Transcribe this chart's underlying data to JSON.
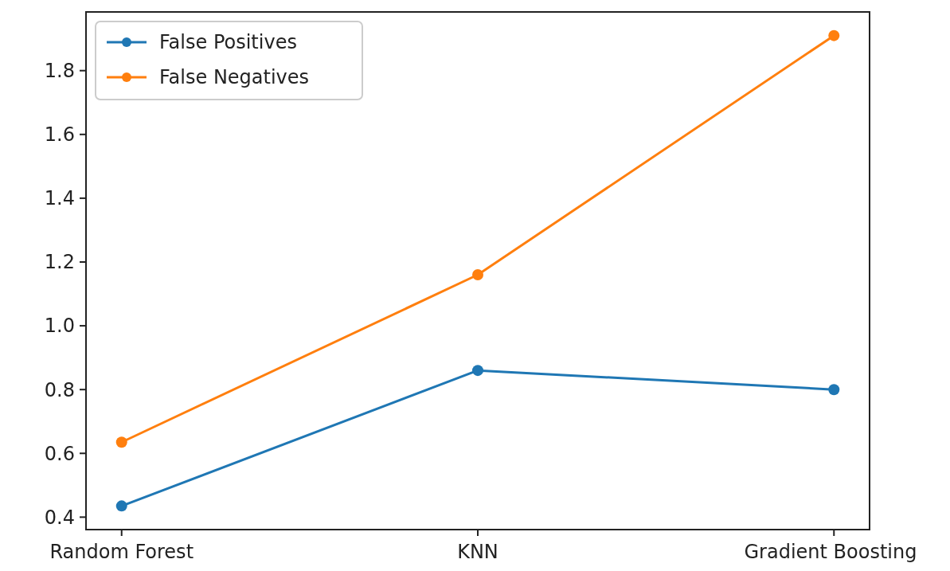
{
  "chart_data": {
    "type": "line",
    "categories": [
      "Random Forest",
      "KNN",
      "Gradient Boosting"
    ],
    "series": [
      {
        "name": "False Positives",
        "color": "#1f77b4",
        "values": [
          0.435,
          0.86,
          0.8
        ]
      },
      {
        "name": "False Negatives",
        "color": "#ff7f0e",
        "values": [
          0.635,
          1.16,
          1.91
        ]
      }
    ],
    "ylim": [
      0.361,
      1.984
    ],
    "yticks": [
      0.4,
      0.6,
      0.8,
      {
        "value": 1,
        "label": "1.0"
      },
      1.2,
      1.4,
      1.6,
      1.8
    ],
    "legend": "top left",
    "marker": "circle",
    "line_style": "solid"
  }
}
